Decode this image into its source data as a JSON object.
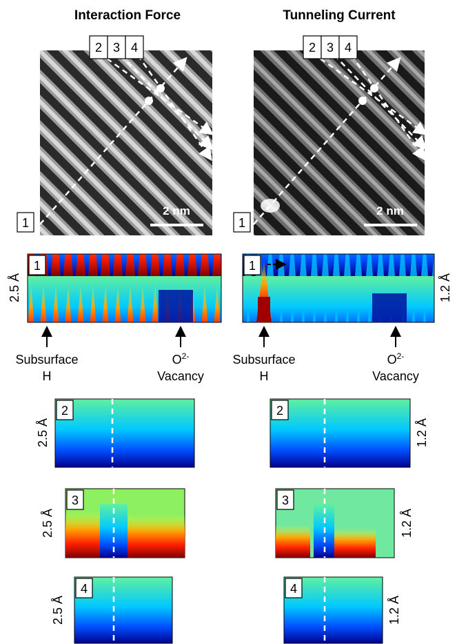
{
  "panels": [
    {
      "title": "Interaction Force",
      "scale_bar": "2 nm",
      "height_label": "2.5 Å",
      "markers": [
        {
          "text": "Subsurface",
          "line2": "H"
        },
        {
          "text": "O",
          "sup": "2-",
          "line2": "Vacancy"
        }
      ]
    },
    {
      "title": "Tunneling Current",
      "scale_bar": "2 nm",
      "height_label": "1.2 Å",
      "markers": [
        {
          "text": "Subsurface",
          "line2": "H"
        },
        {
          "text": "O",
          "sup": "2-",
          "line2": "Vacancy"
        }
      ]
    }
  ],
  "line_labels": [
    "1",
    "2",
    "3",
    "4"
  ]
}
